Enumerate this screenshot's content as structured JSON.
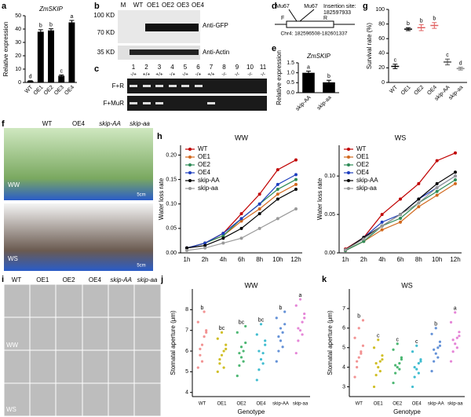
{
  "panel_letters": [
    "a",
    "b",
    "c",
    "d",
    "e",
    "f",
    "g",
    "h",
    "i",
    "j",
    "k"
  ],
  "chart_data": [
    {
      "type": "bar",
      "title": "ZmSKIP",
      "ylabel": "Relative expression",
      "categories": [
        "WT",
        "OE1",
        "OE2",
        "OE3",
        "OE4"
      ],
      "values": [
        1,
        38,
        39,
        5,
        45
      ],
      "errors": [
        0.3,
        1.5,
        1.2,
        0.6,
        1.5
      ],
      "letters": [
        "d",
        "b",
        "b",
        "c",
        "a"
      ],
      "color": "#000000",
      "ylim": [
        0,
        50
      ],
      "yticks": [
        0,
        10,
        20,
        30,
        40,
        50
      ]
    },
    {
      "type": "bar",
      "title": "ZmSKIP",
      "ylabel": "Relative expression",
      "categories": [
        "skip-AA",
        "skip-aa"
      ],
      "values": [
        1.0,
        0.52
      ],
      "errors": [
        0.08,
        0.1
      ],
      "letters": [
        "a",
        "b"
      ],
      "color": "#000000",
      "ylim": [
        0,
        1.5
      ],
      "yticks": [
        {
          "value": 0,
          "label": "0.0"
        },
        0.5,
        {
          "value": 1,
          "label": "1.0"
        },
        1.5
      ]
    },
    {
      "type": "dot",
      "ylabel": "Survival rate (%)",
      "categories": [
        "WT",
        "OE1",
        "OE2",
        "OE4",
        "skip-AA",
        "skip-aa"
      ],
      "values": [
        22,
        73,
        75,
        78,
        28,
        19
      ],
      "errors": [
        3,
        2,
        4,
        4,
        4,
        2
      ],
      "colors": [
        "#000000",
        "#000000",
        "#e06060",
        "#e06060",
        "#555555",
        "#888888"
      ],
      "letters": [
        "c",
        "b",
        "b",
        "b",
        "c",
        "d"
      ],
      "ylim": [
        0,
        100
      ],
      "yticks": [
        0,
        20,
        40,
        60,
        80,
        100
      ]
    },
    {
      "type": "line",
      "title": "WW",
      "ylabel": "Water loss rate",
      "categories": [
        "1h",
        "2h",
        "4h",
        "6h",
        "8h",
        "10h",
        "12h"
      ],
      "ylim": [
        0,
        0.22
      ],
      "yticks": [
        {
          "value": 0,
          "label": "0.00"
        },
        0.05,
        {
          "value": 0.1,
          "label": "0.10"
        },
        0.15,
        {
          "value": 0.2,
          "label": "0.20"
        }
      ],
      "series": [
        {
          "name": "WT",
          "color": "#c00000",
          "values": [
            0.01,
            0.02,
            0.04,
            0.08,
            0.12,
            0.17,
            0.19
          ]
        },
        {
          "name": "OE1",
          "color": "#d2691e",
          "values": [
            0.01,
            0.02,
            0.035,
            0.065,
            0.09,
            0.12,
            0.14
          ]
        },
        {
          "name": "OE2",
          "color": "#2e8b57",
          "values": [
            0.01,
            0.02,
            0.035,
            0.07,
            0.1,
            0.13,
            0.15
          ]
        },
        {
          "name": "OE4",
          "color": "#1f3fbf",
          "values": [
            0.01,
            0.02,
            0.04,
            0.07,
            0.1,
            0.14,
            0.16
          ]
        },
        {
          "name": "skip-AA",
          "color": "#000000",
          "values": [
            0.01,
            0.015,
            0.03,
            0.05,
            0.08,
            0.11,
            0.13
          ]
        },
        {
          "name": "skip-aa",
          "color": "#999999",
          "values": [
            0.005,
            0.01,
            0.02,
            0.03,
            0.05,
            0.07,
            0.09
          ]
        }
      ]
    },
    {
      "type": "line",
      "title": "WS",
      "ylabel": "Water loss rate",
      "categories": [
        "1h",
        "2h",
        "4h",
        "6h",
        "8h",
        "10h",
        "12h"
      ],
      "ylim": [
        0,
        0.14
      ],
      "yticks": [
        {
          "value": 0,
          "label": "0.00"
        },
        0.05,
        {
          "value": 0.1,
          "label": "0.10"
        }
      ],
      "series": [
        {
          "name": "WT",
          "color": "#c00000",
          "values": [
            0.005,
            0.02,
            0.05,
            0.07,
            0.09,
            0.12,
            0.13
          ]
        },
        {
          "name": "OE1",
          "color": "#d2691e",
          "values": [
            0.003,
            0.015,
            0.03,
            0.04,
            0.06,
            0.075,
            0.09
          ]
        },
        {
          "name": "OE2",
          "color": "#2e8b57",
          "values": [
            0.003,
            0.015,
            0.035,
            0.045,
            0.065,
            0.08,
            0.095
          ]
        },
        {
          "name": "OE4",
          "color": "#1f3fbf",
          "values": [
            0.004,
            0.02,
            0.04,
            0.05,
            0.07,
            0.085,
            0.1
          ]
        },
        {
          "name": "skip-AA",
          "color": "#000000",
          "values": [
            0.004,
            0.02,
            0.035,
            0.05,
            0.07,
            0.09,
            0.105
          ]
        },
        {
          "name": "skip-aa",
          "color": "#999999",
          "values": [
            0.004,
            0.018,
            0.035,
            0.05,
            0.065,
            0.085,
            0.1
          ]
        }
      ]
    },
    {
      "type": "swarm",
      "title": "WW",
      "ylabel": "Stomatal aperture (μm)",
      "xlabel": "Genotype",
      "categories": [
        "WT",
        "OE1",
        "OE2",
        "OE4",
        "skip-AA",
        "skip-aa"
      ],
      "colors": [
        "#f08080",
        "#c8b400",
        "#2eaa5a",
        "#20b2c8",
        "#4a7fd0",
        "#e070d0"
      ],
      "letters": [
        "b",
        "bc",
        "bc",
        "bc",
        "b",
        "a"
      ],
      "ylim": [
        3.8,
        9
      ],
      "yticks": [
        4,
        5,
        6,
        7,
        8
      ],
      "values": [
        [
          5.2,
          5.8,
          6.3,
          6.7,
          7.0,
          7.4,
          6.1,
          5.5,
          7.9,
          6.9
        ],
        [
          5.0,
          5.4,
          5.8,
          6.0,
          6.3,
          6.6,
          5.6,
          6.9,
          5.2,
          6.1
        ],
        [
          4.8,
          5.3,
          5.7,
          6.0,
          6.4,
          6.9,
          5.9,
          6.2,
          5.5,
          7.2
        ],
        [
          4.6,
          5.1,
          5.6,
          5.9,
          6.3,
          6.8,
          6.0,
          7.3,
          5.4,
          6.5
        ],
        [
          5.5,
          6.0,
          6.5,
          6.9,
          7.3,
          7.6,
          6.7,
          7.1,
          6.2,
          7.9
        ],
        [
          5.9,
          6.5,
          7.0,
          7.4,
          7.8,
          8.2,
          7.1,
          8.5,
          6.8,
          7.6
        ]
      ]
    },
    {
      "type": "swarm",
      "title": "WS",
      "ylabel": "Stomatal aperture (μm)",
      "xlabel": "Genotype",
      "categories": [
        "WT",
        "OE1",
        "OE2",
        "OE4",
        "skip-AA",
        "skip-aa"
      ],
      "colors": [
        "#f08080",
        "#c8b400",
        "#2eaa5a",
        "#20b2c8",
        "#4a7fd0",
        "#e070d0"
      ],
      "letters": [
        "b",
        "c",
        "c",
        "c",
        "b",
        "a"
      ],
      "ylim": [
        2.5,
        8
      ],
      "yticks": [
        3,
        4,
        5,
        6,
        7
      ],
      "values": [
        [
          3.5,
          4.0,
          4.5,
          4.8,
          5.1,
          5.5,
          4.3,
          6.0,
          4.7,
          6.4
        ],
        [
          3.0,
          3.6,
          4.0,
          4.3,
          4.6,
          5.0,
          4.2,
          5.4,
          3.8,
          4.4
        ],
        [
          3.2,
          3.7,
          4.0,
          4.2,
          4.5,
          4.9,
          4.1,
          5.2,
          3.9,
          4.4
        ],
        [
          3.0,
          3.5,
          3.9,
          4.2,
          4.4,
          4.8,
          4.0,
          5.1,
          3.7,
          4.3
        ],
        [
          3.8,
          4.3,
          4.7,
          5.0,
          5.3,
          5.7,
          4.9,
          6.0,
          4.5,
          5.1
        ],
        [
          4.3,
          4.8,
          5.2,
          5.5,
          5.8,
          6.3,
          5.4,
          6.8,
          5.0,
          5.6
        ]
      ]
    }
  ],
  "blot_b": {
    "markers": [
      "100 KD",
      "70 KD",
      "35 KD"
    ],
    "lanes": [
      "M",
      "WT",
      "OE1",
      "OE2",
      "OE3",
      "OE4"
    ],
    "antibodies": [
      "Anti-GFP",
      "Anti-Actin"
    ]
  },
  "gel_c": {
    "lanes": [
      "1",
      "2",
      "3",
      "4",
      "5",
      "6",
      "7",
      "8",
      "9",
      "10",
      "11"
    ],
    "genotypes": [
      "-/+",
      "+/+",
      "+/+",
      "-/+",
      "-/+",
      "-/+",
      "+/+",
      "-/-",
      "-/-",
      "-/-",
      "-/-"
    ],
    "primers": [
      "F+R",
      "F+MuR"
    ]
  },
  "gene_d": {
    "insertions": [
      "Mu67",
      "Mu67"
    ],
    "primers": [
      "F",
      "R"
    ],
    "insertion_label": "Insertion site:",
    "insertion_position": "182597933",
    "locus": "Chr4: 182596508-182601337"
  },
  "photo_f": {
    "genotypes": [
      "WT",
      "OE4",
      "skip-AA",
      "skip-aa"
    ],
    "conditions": [
      "WW",
      "WS"
    ],
    "scale_bars": [
      "5cm",
      "5cm"
    ]
  },
  "stomata_i": {
    "genotypes": [
      "WT",
      "OE1",
      "OE2",
      "OE4",
      "skip-AA",
      "skip-aa"
    ],
    "conditions": [
      "WW",
      "WS"
    ]
  }
}
